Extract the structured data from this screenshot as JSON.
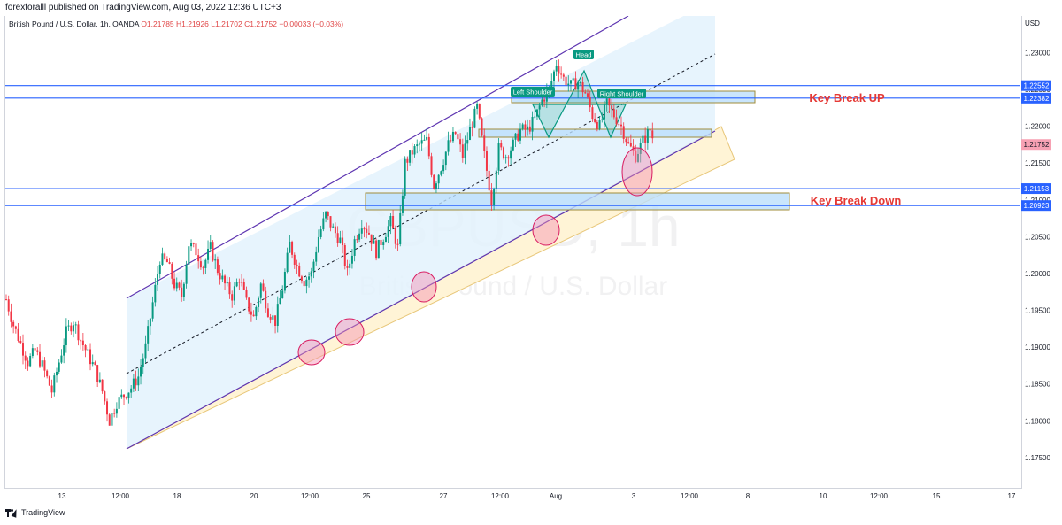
{
  "header": {
    "publisher_line": "forexforalll published on TradingView.com, Aug 03, 2022 12:36 UTC+3"
  },
  "ohlc": {
    "symbol": "British Pound / U.S. Dollar, 1h, OANDA",
    "open": "O1.21785",
    "high": "H1.21926",
    "low": "L1.21702",
    "close": "C1.21752",
    "change": "−0.00033 (−0.03%)"
  },
  "axis": {
    "currency": "USD",
    "price_ticks": [
      "1.23000",
      "1.22500",
      "1.22000",
      "1.21500",
      "1.21000",
      "1.20500",
      "1.20000",
      "1.19500",
      "1.19000",
      "1.18500",
      "1.18000",
      "1.17500"
    ],
    "time_ticks": [
      "13",
      "12:00",
      "18",
      "20",
      "12:00",
      "25",
      "27",
      "12:00",
      "Aug",
      "3",
      "12:00",
      "8",
      "10",
      "12:00",
      "15",
      "17"
    ]
  },
  "watermark": {
    "ticker": "GBPUSD, 1h",
    "name": "British Pound / U.S. Dollar"
  },
  "footer": {
    "brand": "TradingView"
  },
  "chart_data": {
    "type": "candlestick",
    "ylim": [
      1.1715,
      1.2345
    ],
    "price_labels": [
      {
        "text": "1.22552",
        "value": 1.22552,
        "color": "#2962ff"
      },
      {
        "text": "1.22382",
        "value": 1.22382,
        "color": "#2962ff"
      },
      {
        "text": "1.21752",
        "value": 1.21752,
        "color": "#f7a1b3"
      },
      {
        "text": "1.21153",
        "value": 1.21153,
        "color": "#2962ff"
      },
      {
        "text": "1.20923",
        "value": 1.20923,
        "color": "#2962ff"
      }
    ],
    "horizontal_lines": [
      1.22552,
      1.22382,
      1.21153,
      1.20923
    ],
    "annotations": [
      {
        "text": "Key Break UP",
        "color": "#e53935"
      },
      {
        "text": "Key Break Down",
        "color": "#e53935"
      },
      {
        "text": "Head",
        "color": "#089981"
      },
      {
        "text": "Left Shoulder",
        "color": "#089981"
      },
      {
        "text": "Right Shoulder",
        "color": "#089981"
      }
    ],
    "colors": {
      "up": "#089981",
      "down": "#f23645",
      "channel_fill": "#e3f2fd",
      "channel_line": "#5e35b1",
      "support_fill": "#fff4d6"
    },
    "close_path": [
      [
        1.1965,
        0
      ],
      [
        1.193,
        6
      ],
      [
        1.1905,
        12
      ],
      [
        1.188,
        18
      ],
      [
        1.1895,
        24
      ],
      [
        1.1875,
        30
      ],
      [
        1.184,
        38
      ],
      [
        1.188,
        44
      ],
      [
        1.192,
        50
      ],
      [
        1.1935,
        56
      ],
      [
        1.191,
        62
      ],
      [
        1.189,
        68
      ],
      [
        1.187,
        74
      ],
      [
        1.184,
        80
      ],
      [
        1.18,
        86
      ],
      [
        1.1825,
        92
      ],
      [
        1.1835,
        98
      ],
      [
        1.1845,
        104
      ],
      [
        1.186,
        110
      ],
      [
        1.19,
        116
      ],
      [
        1.196,
        122
      ],
      [
        1.202,
        128
      ],
      [
        1.2015,
        134
      ],
      [
        1.1985,
        140
      ],
      [
        1.197,
        146
      ],
      [
        1.204,
        152
      ],
      [
        1.203,
        158
      ],
      [
        1.201,
        164
      ],
      [
        1.2035,
        170
      ],
      [
        1.2005,
        176
      ],
      [
        1.1985,
        182
      ],
      [
        1.197,
        188
      ],
      [
        1.1995,
        194
      ],
      [
        1.196,
        200
      ],
      [
        1.194,
        206
      ],
      [
        1.1985,
        212
      ],
      [
        1.195,
        218
      ],
      [
        1.1935,
        224
      ],
      [
        1.198,
        230
      ],
      [
        1.204,
        236
      ],
      [
        1.201,
        242
      ],
      [
        1.199,
        248
      ],
      [
        1.2,
        254
      ],
      [
        1.205,
        260
      ],
      [
        1.208,
        266
      ],
      [
        1.206,
        272
      ],
      [
        1.2045,
        278
      ],
      [
        1.2,
        284
      ],
      [
        1.2045,
        290
      ],
      [
        1.207,
        296
      ],
      [
        1.2055,
        302
      ],
      [
        1.203,
        308
      ],
      [
        1.205,
        314
      ],
      [
        1.207,
        320
      ],
      [
        1.2035,
        326
      ],
      [
        1.215,
        332
      ],
      [
        1.2165,
        338
      ],
      [
        1.2175,
        344
      ],
      [
        1.218,
        350
      ],
      [
        1.212,
        356
      ],
      [
        1.2145,
        362
      ],
      [
        1.2175,
        368
      ],
      [
        1.219,
        374
      ],
      [
        1.216,
        380
      ],
      [
        1.2195,
        386
      ],
      [
        1.2225,
        392
      ],
      [
        1.216,
        398
      ],
      [
        1.21,
        404
      ],
      [
        1.217,
        410
      ],
      [
        1.216,
        416
      ],
      [
        1.2175,
        422
      ],
      [
        1.2195,
        428
      ],
      [
        1.2195,
        434
      ],
      [
        1.221,
        440
      ],
      [
        1.2235,
        446
      ],
      [
        1.225,
        452
      ],
      [
        1.2285,
        458
      ],
      [
        1.2265,
        464
      ],
      [
        1.2255,
        470
      ],
      [
        1.226,
        476
      ],
      [
        1.2245,
        482
      ],
      [
        1.2215,
        488
      ],
      [
        1.22,
        494
      ],
      [
        1.223,
        500
      ],
      [
        1.2215,
        506
      ],
      [
        1.22,
        512
      ],
      [
        1.2175,
        518
      ],
      [
        1.216,
        524
      ],
      [
        1.218,
        530
      ],
      [
        1.2195,
        536
      ],
      [
        1.2175,
        540
      ]
    ]
  }
}
